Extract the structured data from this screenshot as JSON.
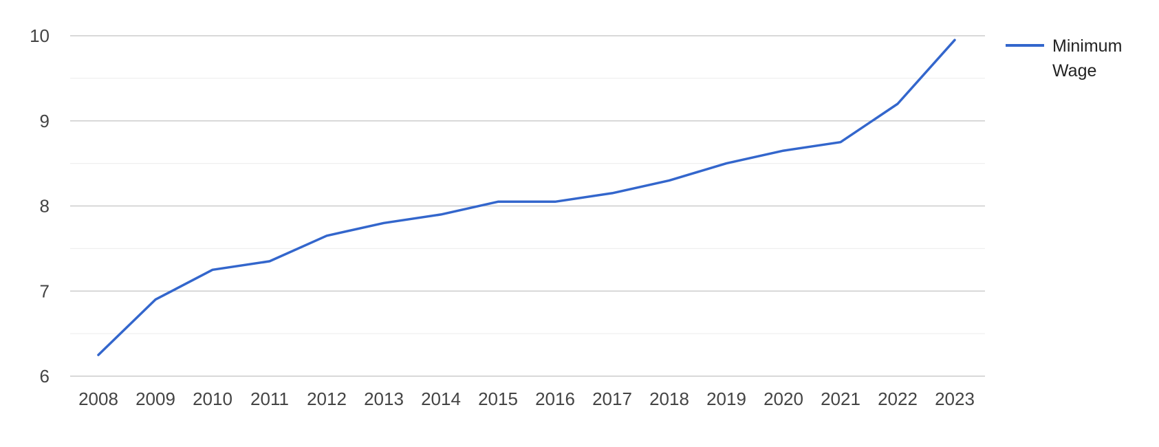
{
  "chart_data": {
    "type": "line",
    "title": "",
    "xlabel": "",
    "ylabel": "",
    "categories": [
      "2008",
      "2009",
      "2010",
      "2011",
      "2012",
      "2013",
      "2014",
      "2015",
      "2016",
      "2017",
      "2018",
      "2019",
      "2020",
      "2021",
      "2022",
      "2023"
    ],
    "series": [
      {
        "name": "Minimum Wage",
        "color": "#3366cc",
        "values": [
          6.25,
          6.9,
          7.25,
          7.35,
          7.65,
          7.8,
          7.9,
          8.05,
          8.05,
          8.15,
          8.3,
          8.5,
          8.65,
          8.75,
          9.2,
          9.95
        ]
      }
    ],
    "ylim": [
      6,
      10
    ],
    "yticks": [
      "6",
      "7",
      "8",
      "9",
      "10"
    ],
    "grid": true,
    "legend": {
      "placement": "right",
      "lines": [
        "Minimum",
        "Wage"
      ]
    },
    "colors": {
      "major_grid": "#cccccc",
      "minor_grid": "#ebebeb",
      "line": "#3366cc"
    }
  }
}
